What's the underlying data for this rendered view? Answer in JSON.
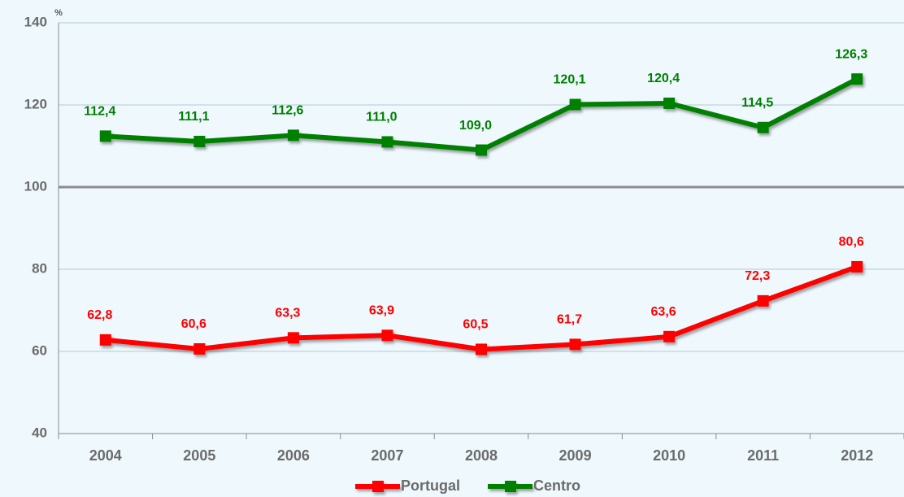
{
  "chart_data": {
    "type": "line",
    "y_axis_label": "%",
    "categories": [
      "2004",
      "2005",
      "2006",
      "2007",
      "2008",
      "2009",
      "2010",
      "2011",
      "2012"
    ],
    "series": [
      {
        "name": "Portugal",
        "color": "#ff0000",
        "values": [
          62.8,
          60.6,
          63.3,
          63.9,
          60.5,
          61.7,
          63.6,
          72.3,
          80.6
        ],
        "value_labels": [
          "62,8",
          "60,6",
          "63,3",
          "63,9",
          "60,5",
          "61,7",
          "63,6",
          "72,3",
          "80,6"
        ]
      },
      {
        "name": "Centro",
        "color": "#008000",
        "values": [
          112.4,
          111.1,
          112.6,
          111.0,
          109.0,
          120.1,
          120.4,
          114.5,
          126.3
        ],
        "value_labels": [
          "112,4",
          "111,1",
          "112,6",
          "111,0",
          "109,0",
          "120,1",
          "120,4",
          "114,5",
          "126,3"
        ]
      }
    ],
    "ylim": [
      40,
      140
    ],
    "yticks": [
      40,
      60,
      80,
      100,
      120,
      140
    ],
    "grid": true,
    "highlight_tick": 100,
    "legend": "bottom"
  }
}
